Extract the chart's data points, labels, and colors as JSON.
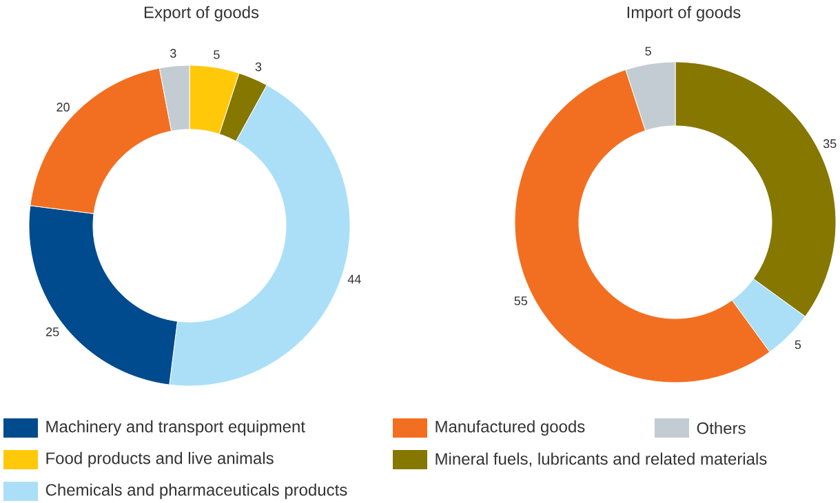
{
  "chart_data": [
    {
      "type": "donut",
      "title": "Export of goods",
      "categories": [
        "Food products and live animals",
        "Mineral fuels, lubricants and related materials",
        "Chemicals and pharmaceuticals products",
        "Machinery and transport equipment",
        "Manufactured goods",
        "Others"
      ],
      "values": [
        5,
        3,
        44,
        25,
        20,
        3
      ],
      "colors": [
        "#ffc90a",
        "#857700",
        "#abdff8",
        "#004b8d",
        "#f26f21",
        "#c3ccd2"
      ],
      "data_labels": true,
      "legend": "bottom"
    },
    {
      "type": "donut",
      "title": "Import of goods",
      "categories": [
        null,
        null,
        null,
        null
      ],
      "values": [
        35,
        5,
        55,
        5
      ],
      "colors": [
        "#857700",
        "#abdff8",
        "#f26f21",
        "#c3ccd2"
      ],
      "data_labels": true
    }
  ]
}
